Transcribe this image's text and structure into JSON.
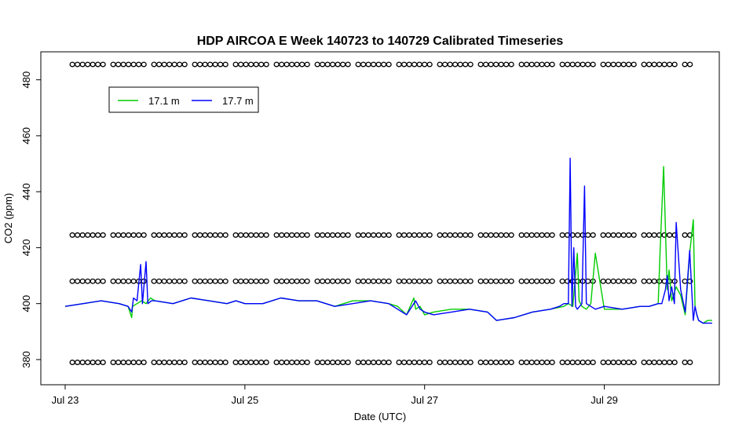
{
  "chart_data": {
    "type": "line",
    "title": "HDP AIRCOA E  Week 140723 to 140729  Calibrated Timeseries",
    "xlabel": "Date (UTC)",
    "ylabel": "CO2 (ppm)",
    "xlim": [
      0,
      7.3
    ],
    "ylim": [
      371,
      490
    ],
    "x_ticks": [
      {
        "x": 0,
        "label": "Jul 23"
      },
      {
        "x": 2,
        "label": "Jul 25"
      },
      {
        "x": 4,
        "label": "Jul 27"
      },
      {
        "x": 6,
        "label": "Jul 29"
      }
    ],
    "y_ticks": [
      380,
      400,
      420,
      440,
      460,
      480
    ],
    "grid": false,
    "legend": {
      "placement": "top-left"
    },
    "series": [
      {
        "name": "17.1 m",
        "color": "#00cc00",
        "x": [
          0.0,
          0.2,
          0.4,
          0.6,
          0.7,
          0.74,
          0.75,
          0.8,
          0.85,
          0.9,
          0.95,
          1.0,
          1.2,
          1.4,
          1.6,
          1.8,
          1.9,
          2.0,
          2.2,
          2.4,
          2.6,
          2.8,
          3.0,
          3.2,
          3.4,
          3.6,
          3.7,
          3.8,
          3.88,
          3.9,
          3.95,
          4.0,
          4.1,
          4.3,
          4.5,
          4.7,
          4.8,
          5.0,
          5.2,
          5.4,
          5.55,
          5.6,
          5.65,
          5.7,
          5.72,
          5.75,
          5.8,
          5.85,
          5.9,
          6.0,
          6.2,
          6.4,
          6.5,
          6.6,
          6.62,
          6.66,
          6.7,
          6.72,
          6.75,
          6.8,
          6.85,
          6.9,
          6.95,
          6.99,
          7.01,
          7.03,
          7.05,
          7.1,
          7.15,
          7.2
        ],
        "values": [
          399,
          400,
          401,
          400,
          399,
          395,
          399,
          400,
          401,
          400,
          402,
          401,
          400,
          402,
          401,
          400,
          401,
          400,
          400,
          402,
          401,
          401,
          399,
          401,
          401,
          400,
          399,
          396,
          402,
          398,
          399,
          396,
          397,
          398,
          398,
          397,
          394,
          395,
          397,
          398,
          399,
          400,
          399,
          418,
          401,
          399,
          398,
          400,
          418,
          398,
          398,
          399,
          399,
          400,
          418,
          449,
          405,
          412,
          401,
          406,
          403,
          396,
          418,
          430,
          399,
          396,
          394,
          393,
          394,
          394
        ]
      },
      {
        "name": "17.7 m",
        "color": "#0000ff",
        "x": [
          0.0,
          0.2,
          0.4,
          0.6,
          0.7,
          0.74,
          0.76,
          0.8,
          0.84,
          0.86,
          0.9,
          0.92,
          0.96,
          1.0,
          1.2,
          1.4,
          1.6,
          1.8,
          1.9,
          2.0,
          2.2,
          2.4,
          2.6,
          2.8,
          3.0,
          3.2,
          3.4,
          3.6,
          3.7,
          3.8,
          3.9,
          3.95,
          4.0,
          4.1,
          4.3,
          4.5,
          4.7,
          4.8,
          5.0,
          5.2,
          5.4,
          5.5,
          5.55,
          5.6,
          5.62,
          5.64,
          5.66,
          5.68,
          5.7,
          5.75,
          5.78,
          5.8,
          5.85,
          5.9,
          6.0,
          6.2,
          6.4,
          6.5,
          6.6,
          6.64,
          6.68,
          6.7,
          6.72,
          6.75,
          6.78,
          6.8,
          6.85,
          6.9,
          6.95,
          6.99,
          7.01,
          7.03,
          7.05,
          7.1,
          7.15,
          7.2
        ],
        "values": [
          399,
          400,
          401,
          400,
          399,
          397,
          402,
          401,
          414,
          400,
          415,
          400,
          401,
          401,
          400,
          402,
          401,
          400,
          401,
          400,
          400,
          402,
          401,
          401,
          399,
          400,
          401,
          400,
          398,
          396,
          401,
          398,
          397,
          396,
          397,
          398,
          397,
          394,
          395,
          397,
          398,
          399,
          400,
          400,
          452,
          399,
          420,
          399,
          398,
          400,
          442,
          400,
          399,
          398,
          399,
          398,
          399,
          399,
          400,
          400,
          405,
          410,
          401,
          406,
          400,
          429,
          405,
          397,
          419,
          394,
          399,
          396,
          394,
          393,
          393,
          393
        ]
      },
      {
        "name": "",
        "color": "#000000",
        "markers": "circle",
        "note": "reference cylinders",
        "levels": [
          485.5,
          424.5,
          408,
          379
        ]
      }
    ]
  }
}
